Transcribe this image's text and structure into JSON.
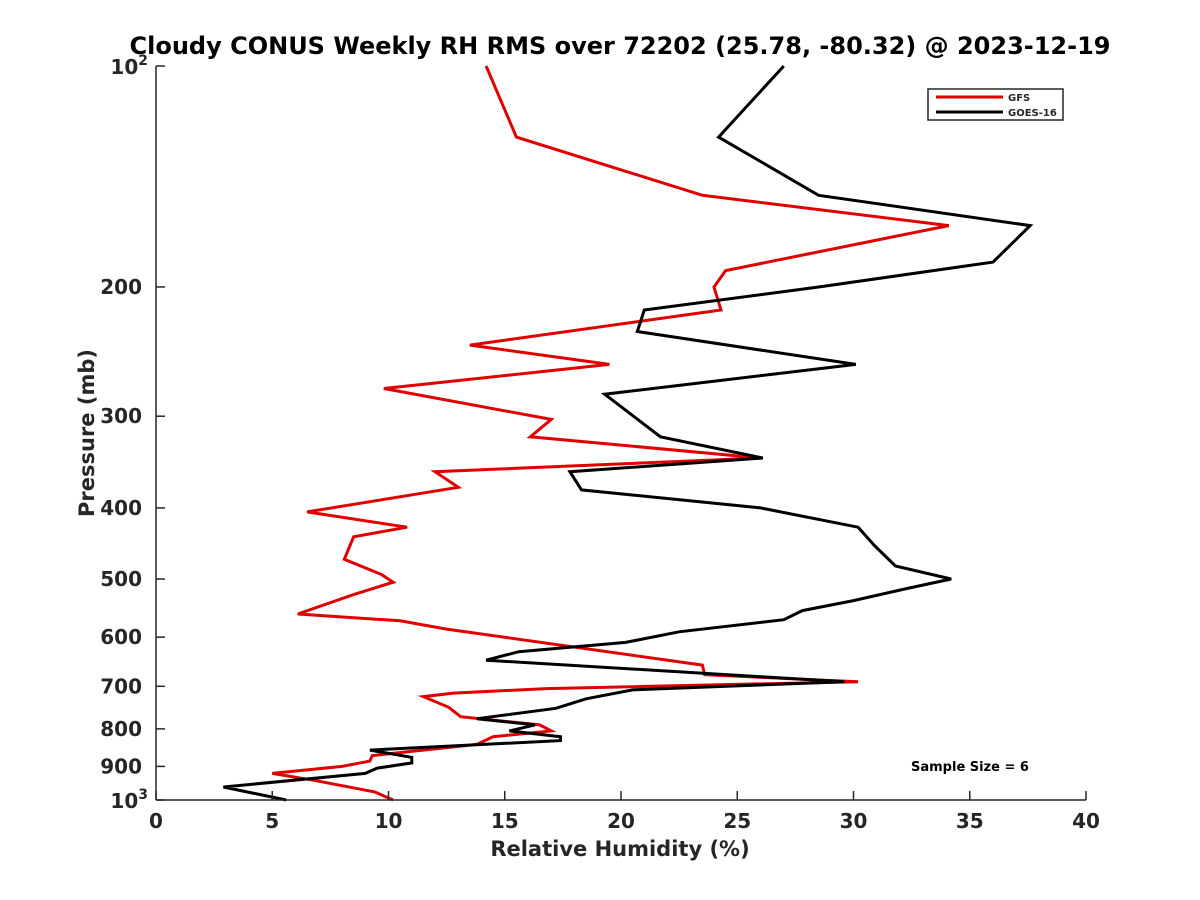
{
  "chart_data": {
    "type": "line",
    "title": "Cloudy CONUS Weekly RH RMS over 72202 (25.78, -80.32) @ 2023-12-19",
    "xlabel": "Relative Humidity (%)",
    "ylabel": "Pressure (mb)",
    "xlim": [
      0,
      40
    ],
    "ylim": [
      100,
      1000
    ],
    "y_scale": "log",
    "y_reversed": true,
    "x_ticks": [
      0,
      5,
      10,
      15,
      20,
      25,
      30,
      35,
      40
    ],
    "y_ticks": [
      {
        "value": 100,
        "base": "10",
        "exp": "2"
      },
      {
        "value": 200,
        "label": "200"
      },
      {
        "value": 300,
        "label": "300"
      },
      {
        "value": 400,
        "label": "400"
      },
      {
        "value": 500,
        "label": "500"
      },
      {
        "value": 600,
        "label": "600"
      },
      {
        "value": 700,
        "label": "700"
      },
      {
        "value": 800,
        "label": "800"
      },
      {
        "value": 900,
        "label": "900"
      },
      {
        "value": 1000,
        "base": "10",
        "exp": "3"
      }
    ],
    "legend_position": "top-right",
    "grid": false,
    "annotation": "Sample Size = 6",
    "series": [
      {
        "name": "GFS",
        "color": "#e00000",
        "points": [
          [
            14.2,
            100
          ],
          [
            15.5,
            125
          ],
          [
            23.5,
            150
          ],
          [
            34.1,
            165
          ],
          [
            24.5,
            190
          ],
          [
            24.0,
            200
          ],
          [
            24.3,
            215
          ],
          [
            13.5,
            240
          ],
          [
            19.5,
            255
          ],
          [
            9.8,
            275
          ],
          [
            17.0,
            303
          ],
          [
            16.1,
            320
          ],
          [
            26.0,
            342
          ],
          [
            12.0,
            357
          ],
          [
            13.0,
            375
          ],
          [
            6.5,
            405
          ],
          [
            10.8,
            425
          ],
          [
            8.5,
            438
          ],
          [
            8.1,
            470
          ],
          [
            9.7,
            493
          ],
          [
            10.2,
            505
          ],
          [
            8.5,
            525
          ],
          [
            6.1,
            558
          ],
          [
            10.5,
            570
          ],
          [
            12.5,
            585
          ],
          [
            23.5,
            655
          ],
          [
            23.6,
            675
          ],
          [
            30.2,
            690
          ],
          [
            16.8,
            705
          ],
          [
            12.8,
            715
          ],
          [
            11.5,
            723
          ],
          [
            12.6,
            748
          ],
          [
            13.1,
            770
          ],
          [
            16.5,
            790
          ],
          [
            17.0,
            805
          ],
          [
            14.5,
            820
          ],
          [
            13.8,
            840
          ],
          [
            9.3,
            870
          ],
          [
            9.2,
            885
          ],
          [
            8.0,
            900
          ],
          [
            5.0,
            920
          ],
          [
            6.8,
            940
          ],
          [
            9.4,
            975
          ],
          [
            10.2,
            1000
          ]
        ]
      },
      {
        "name": "GOES-16",
        "color": "#000000",
        "points": [
          [
            27.0,
            100
          ],
          [
            24.2,
            125
          ],
          [
            28.5,
            150
          ],
          [
            37.6,
            165
          ],
          [
            36.0,
            185
          ],
          [
            28.5,
            200
          ],
          [
            21.0,
            215
          ],
          [
            20.7,
            230
          ],
          [
            30.1,
            255
          ],
          [
            19.3,
            280
          ],
          [
            21.7,
            320
          ],
          [
            26.1,
            342
          ],
          [
            17.8,
            357
          ],
          [
            18.3,
            378
          ],
          [
            26.0,
            400
          ],
          [
            30.2,
            425
          ],
          [
            30.9,
            450
          ],
          [
            31.8,
            480
          ],
          [
            34.2,
            500
          ],
          [
            32.3,
            515
          ],
          [
            30.0,
            535
          ],
          [
            27.8,
            552
          ],
          [
            27.0,
            568
          ],
          [
            22.5,
            590
          ],
          [
            20.2,
            610
          ],
          [
            15.6,
            628
          ],
          [
            14.2,
            645
          ],
          [
            29.6,
            690
          ],
          [
            20.5,
            708
          ],
          [
            18.5,
            728
          ],
          [
            17.2,
            750
          ],
          [
            13.8,
            775
          ],
          [
            16.3,
            790
          ],
          [
            15.2,
            805
          ],
          [
            17.4,
            820
          ],
          [
            17.4,
            830
          ],
          [
            9.2,
            855
          ],
          [
            11.0,
            875
          ],
          [
            11.0,
            890
          ],
          [
            9.5,
            905
          ],
          [
            9.0,
            920
          ],
          [
            2.9,
            960
          ],
          [
            5.6,
            1000
          ]
        ]
      }
    ]
  }
}
